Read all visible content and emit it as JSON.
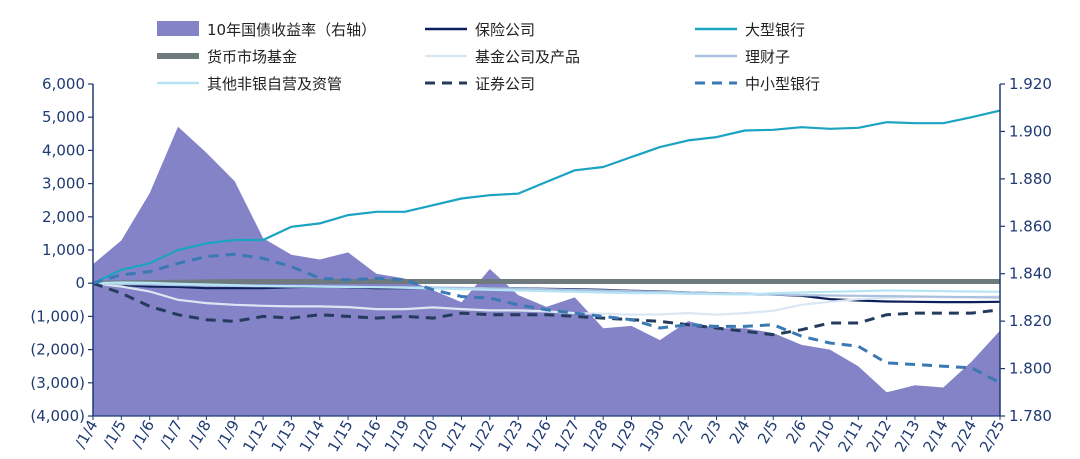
{
  "chart_data": {
    "type": "area+line",
    "title": "",
    "xlabel": "",
    "ylabel": "",
    "y2label": "",
    "grid": false,
    "legend_position": "top",
    "ylim": [
      -4000,
      6000
    ],
    "y2lim": [
      1.78,
      1.92
    ],
    "y_ticks": [
      6000,
      5000,
      4000,
      3000,
      2000,
      1000,
      0,
      -1000,
      -2000,
      -3000,
      -4000
    ],
    "y_tick_labels": [
      "6,000",
      "5,000",
      "4,000",
      "3,000",
      "2,000",
      "1,000",
      "0",
      "(1,000)",
      "(2,000)",
      "(3,000)",
      "(4,000)"
    ],
    "y2_ticks": [
      1.92,
      1.9,
      1.88,
      1.86,
      1.84,
      1.82,
      1.8,
      1.78
    ],
    "y2_tick_labels": [
      "1.920",
      "1.900",
      "1.880",
      "1.860",
      "1.840",
      "1.820",
      "1.800",
      "1.780"
    ],
    "categories": [
      "1/4",
      "1/5",
      "1/6",
      "1/7",
      "1/8",
      "1/9",
      "1/12",
      "1/13",
      "1/14",
      "1/15",
      "1/16",
      "1/19",
      "1/20",
      "1/21",
      "1/22",
      "1/23",
      "1/26",
      "1/27",
      "1/28",
      "1/29",
      "1/30",
      "2/2",
      "2/3",
      "2/4",
      "2/5",
      "2/6",
      "2/10",
      "2/11",
      "2/12",
      "2/13",
      "2/14",
      "2/24",
      "2/25"
    ],
    "category_labels": [
      "/1/4",
      "/1/5",
      "/1/6",
      "/1/7",
      "/1/8",
      "/1/9",
      "1/12",
      "1/13",
      "1/14",
      "1/15",
      "1/16",
      "1/19",
      "1/20",
      "1/21",
      "1/22",
      "1/23",
      "1/26",
      "1/27",
      "1/28",
      "1/29",
      "1/30",
      "2/2",
      "2/3",
      "2/4",
      "2/5",
      "2/6",
      "2/10",
      "2/11",
      "2/12",
      "2/13",
      "2/14",
      "2/24",
      "2/25"
    ],
    "area": {
      "name": "10年国债收益率（右轴）",
      "axis": "right",
      "color": "#8583c8",
      "values": [
        1.844,
        1.854,
        1.874,
        1.902,
        1.891,
        1.879,
        1.855,
        1.848,
        1.846,
        1.849,
        1.84,
        1.838,
        1.833,
        1.828,
        1.842,
        1.831,
        1.826,
        1.83,
        1.817,
        1.818,
        1.812,
        1.82,
        1.817,
        1.817,
        1.815,
        1.81,
        1.808,
        1.801,
        1.79,
        1.793,
        1.792,
        1.803,
        1.816
      ]
    },
    "series": [
      {
        "name": "保险公司",
        "color": "#0d1f5c",
        "dash": "solid",
        "values": [
          0,
          -50,
          -100,
          -110,
          -150,
          -150,
          -150,
          -120,
          -100,
          -120,
          -150,
          -150,
          -150,
          -150,
          -150,
          -150,
          -170,
          -180,
          -200,
          -230,
          -250,
          -280,
          -300,
          -320,
          -340,
          -380,
          -480,
          -520,
          -550,
          -560,
          -570,
          -570,
          -560
        ]
      },
      {
        "name": "大型银行",
        "color": "#1ba3c2",
        "dash": "solid",
        "values": [
          0,
          400,
          600,
          1000,
          1200,
          1300,
          1300,
          1700,
          1800,
          2050,
          2150,
          2150,
          2350,
          2550,
          2650,
          2700,
          3050,
          3400,
          3500,
          3800,
          4100,
          4300,
          4400,
          4600,
          4620,
          4700,
          4650,
          4680,
          4850,
          4820,
          4820,
          5000,
          5200
        ]
      },
      {
        "name": "货币市场基金",
        "color": "#6e7a7e",
        "dash": "solid",
        "thick": true,
        "values": [
          0,
          10,
          20,
          30,
          40,
          50,
          50,
          50,
          50,
          50,
          50,
          50,
          50,
          50,
          50,
          50,
          50,
          50,
          50,
          50,
          50,
          50,
          50,
          50,
          50,
          50,
          50,
          50,
          50,
          50,
          50,
          50,
          50
        ]
      },
      {
        "name": "基金公司及产品",
        "color": "#dbe6f3",
        "dash": "solid",
        "values": [
          0,
          -100,
          -250,
          -500,
          -600,
          -650,
          -680,
          -700,
          -700,
          -720,
          -780,
          -780,
          -730,
          -780,
          -820,
          -820,
          -850,
          -900,
          -920,
          -950,
          -940,
          -900,
          -950,
          -900,
          -830,
          -650,
          -560,
          -480,
          -440,
          -410,
          -420,
          -420,
          -400
        ]
      },
      {
        "name": "理财子",
        "color": "#a9c0de",
        "dash": "solid",
        "values": [
          0,
          -20,
          -40,
          -60,
          -70,
          -80,
          -90,
          -100,
          -100,
          -110,
          -120,
          -120,
          -130,
          -140,
          -150,
          -160,
          -180,
          -200,
          -220,
          -240,
          -260,
          -280,
          -300,
          -320,
          -340,
          -360,
          -370,
          -380,
          -390,
          -400,
          -410,
          -420,
          -430
        ]
      },
      {
        "name": "其他非银自营及资管",
        "color": "#b7e4f5",
        "dash": "solid",
        "values": [
          0,
          20,
          10,
          -20,
          -40,
          -60,
          -80,
          -90,
          -100,
          -110,
          -120,
          -140,
          -160,
          -180,
          -200,
          -220,
          -240,
          -260,
          -280,
          -300,
          -300,
          -320,
          -330,
          -340,
          -300,
          -280,
          -260,
          -240,
          -220,
          -230,
          -240,
          -250,
          -260
        ]
      },
      {
        "name": "证券公司",
        "color": "#243b5e",
        "dash": "dash",
        "values": [
          0,
          -300,
          -700,
          -950,
          -1100,
          -1150,
          -1000,
          -1050,
          -950,
          -1000,
          -1050,
          -1000,
          -1050,
          -900,
          -950,
          -950,
          -950,
          -1000,
          -1050,
          -1100,
          -1150,
          -1250,
          -1350,
          -1450,
          -1550,
          -1400,
          -1200,
          -1200,
          -950,
          -900,
          -900,
          -900,
          -800
        ]
      },
      {
        "name": "中小型银行",
        "color": "#3a79b3",
        "dash": "dash",
        "values": [
          0,
          250,
          350,
          600,
          800,
          870,
          750,
          500,
          150,
          100,
          150,
          100,
          -200,
          -400,
          -450,
          -650,
          -800,
          -900,
          -1000,
          -1100,
          -1350,
          -1250,
          -1300,
          -1300,
          -1250,
          -1600,
          -1800,
          -1900,
          -2400,
          -2450,
          -2500,
          -2550,
          -3000
        ]
      }
    ]
  }
}
